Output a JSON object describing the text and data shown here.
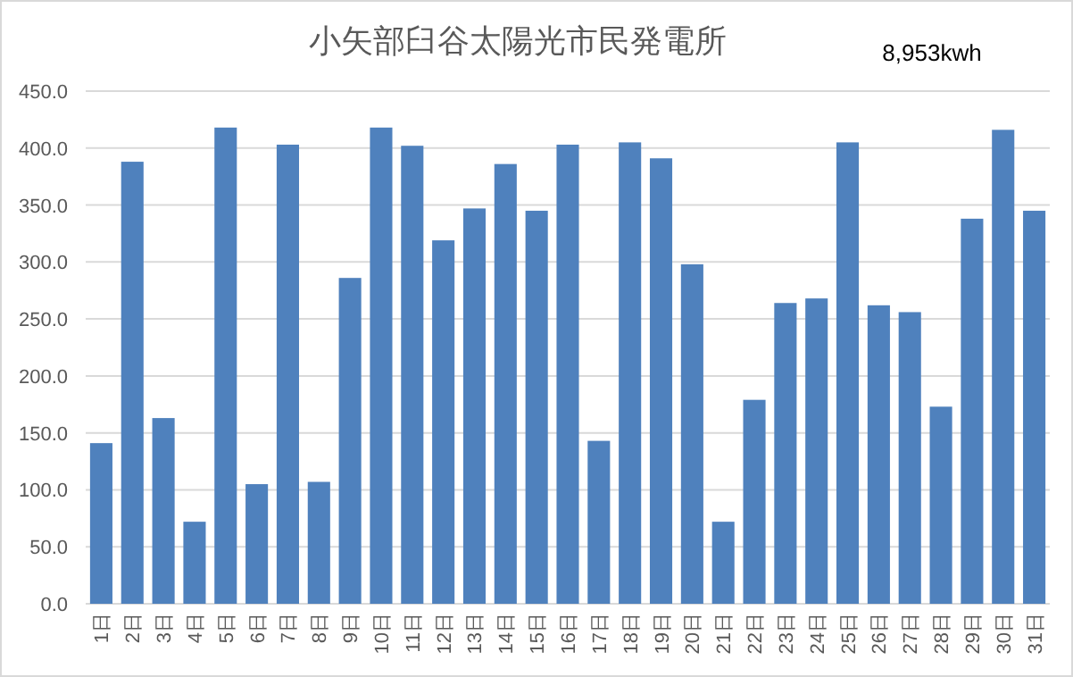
{
  "chart_data": {
    "type": "bar",
    "title": "小矢部臼谷太陽光市民発電所",
    "annotations": [
      "8,953kwh"
    ],
    "categories": [
      "1日",
      "2日",
      "3日",
      "4日",
      "5日",
      "6日",
      "7日",
      "8日",
      "9日",
      "10日",
      "11日",
      "12日",
      "13日",
      "14日",
      "15日",
      "16日",
      "17日",
      "18日",
      "19日",
      "20日",
      "21日",
      "22日",
      "23日",
      "24日",
      "25日",
      "26日",
      "27日",
      "28日",
      "29日",
      "30日",
      "31日"
    ],
    "values": [
      141,
      388,
      163,
      72,
      418,
      105,
      403,
      107,
      286,
      418,
      402,
      319,
      347,
      386,
      345,
      403,
      143,
      405,
      391,
      298,
      72,
      179,
      264,
      268,
      405,
      262,
      256,
      173,
      338,
      416,
      345
    ],
    "color": "#4f81bd",
    "ylim": [
      0,
      450
    ],
    "yticks": [
      {
        "value": 0,
        "label": "0.0"
      },
      {
        "value": 50,
        "label": "50.0"
      },
      {
        "value": 100,
        "label": "100.0"
      },
      {
        "value": 150,
        "label": "150.0"
      },
      {
        "value": 200,
        "label": "200.0"
      },
      {
        "value": 250,
        "label": "250.0"
      },
      {
        "value": 300,
        "label": "300.0"
      },
      {
        "value": 350,
        "label": "350.0"
      },
      {
        "value": 400,
        "label": "400.0"
      },
      {
        "value": 450,
        "label": "450.0"
      }
    ],
    "grid": "y"
  }
}
